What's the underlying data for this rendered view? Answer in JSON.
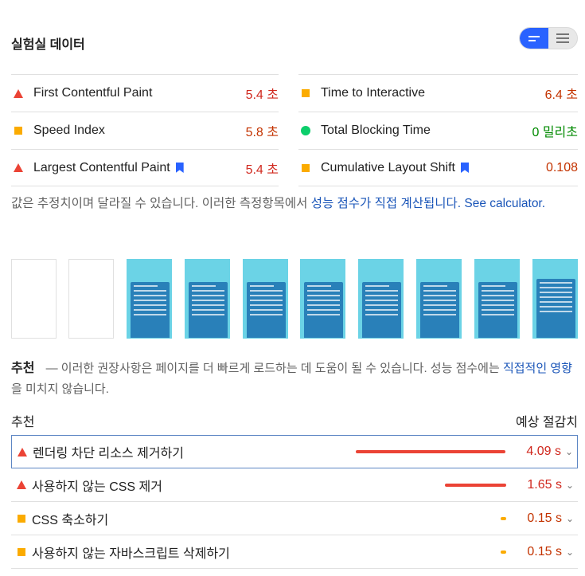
{
  "header": {
    "title": "실험실 데이터"
  },
  "view_toggle": {
    "active": "list-detailed",
    "options": [
      "detailed",
      "compact"
    ]
  },
  "metrics": [
    {
      "name": "First Contentful Paint",
      "value": "5.4 초",
      "status": "fail",
      "icon": "triangle-icon",
      "bookmark": false
    },
    {
      "name": "Speed Index",
      "value": "5.8 초",
      "status": "average",
      "icon": "square-icon",
      "bookmark": false
    },
    {
      "name": "Largest Contentful Paint",
      "value": "5.4 초",
      "status": "fail",
      "icon": "triangle-icon",
      "bookmark": true
    },
    {
      "name": "Time to Interactive",
      "value": "6.4 초",
      "status": "average",
      "icon": "square-icon",
      "bookmark": false
    },
    {
      "name": "Total Blocking Time",
      "value": "0 밀리초",
      "status": "pass",
      "icon": "circle-icon",
      "bookmark": false
    },
    {
      "name": "Cumulative Layout Shift",
      "value": "0.108",
      "status": "average",
      "icon": "square-icon",
      "bookmark": true
    }
  ],
  "note": {
    "text": "값은 추정치이며 달라질 수 있습니다. 이러한 측정항목에서 ",
    "link1": "성능 점수가 직접 계산됩니다.",
    "link2": "See calculator."
  },
  "filmstrip": {
    "frame_count": 10,
    "blank_frames": 2
  },
  "recommendations": {
    "title": "추천",
    "text": " — 이러한 권장사항은 페이지를 더 빠르게 로드하는 데 도움이 될 수 있습니다. 성능 점수에는 ",
    "link": "직접적인 영향",
    "text2": "을 미치지 않습니다."
  },
  "columns": {
    "left": "추천",
    "right": "예상 절감치"
  },
  "opportunities": [
    {
      "label": "렌더링 차단 리소스 제거하기",
      "savings": "4.09 s",
      "savings_value": 4.09,
      "status": "fail"
    },
    {
      "label": "사용하지 않는 CSS 제거",
      "savings": "1.65 s",
      "savings_value": 1.65,
      "status": "fail"
    },
    {
      "label": "CSS 축소하기",
      "savings": "0.15 s",
      "savings_value": 0.15,
      "status": "average"
    },
    {
      "label": "사용하지 않는 자바스크립트 삭제하기",
      "savings": "0.15 s",
      "savings_value": 0.15,
      "status": "average"
    }
  ],
  "colors": {
    "fail": "#d0281e",
    "average": "#c33300",
    "pass": "#008a00",
    "accent": "#2962ff",
    "link": "#1a55b8"
  }
}
